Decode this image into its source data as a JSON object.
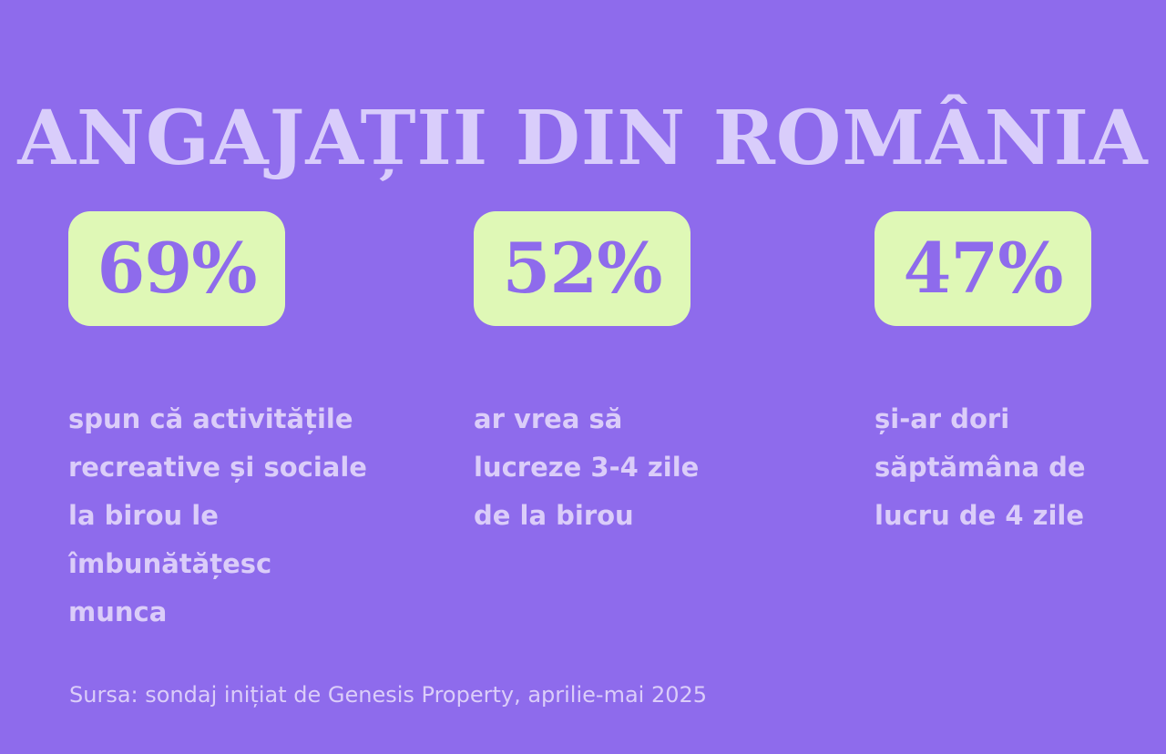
{
  "title": "ANGAJAȚII DIN ROMÂNIA",
  "stats": [
    {
      "value": "69%",
      "description": "spun că activitățile\nrecreative și sociale\nla birou le\nîmbunătățesc\nmunca"
    },
    {
      "value": "52%",
      "description": "ar vrea să\nlucreze 3-4 zile\nde la birou"
    },
    {
      "value": "47%",
      "description": "și-ar dori\nsăptămâna de\nlucru de 4 zile"
    }
  ],
  "source": "Sursa: sondaj inițiat de Genesis Property, aprilie-mai 2025",
  "colors": {
    "background": "#8e6bec",
    "title": "#d9cdfb",
    "badge": "#dff8b6",
    "badge_text": "#8e6bec",
    "description": "#dbcdf9"
  }
}
